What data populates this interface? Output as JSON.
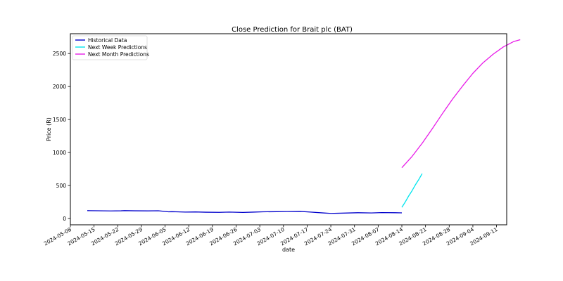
{
  "chart_data": {
    "type": "line",
    "title": "Close Prediction for Brait plc (BAT)",
    "xlabel": "date",
    "ylabel": "Price (R)",
    "xlim": [
      "2024-05-08",
      "2024-09-14"
    ],
    "ylim": [
      -95,
      2800
    ],
    "x_ticks": [
      "2024-05-08",
      "2024-05-15",
      "2024-05-22",
      "2024-05-29",
      "2024-06-05",
      "2024-06-12",
      "2024-06-19",
      "2024-06-26",
      "2024-07-03",
      "2024-07-10",
      "2024-07-17",
      "2024-07-24",
      "2024-07-31",
      "2024-08-07",
      "2024-08-14",
      "2024-08-21",
      "2024-08-28",
      "2024-09-04",
      "2024-09-11"
    ],
    "y_ticks": [
      0,
      500,
      1000,
      1500,
      2000,
      2500
    ],
    "grid": false,
    "legend_position": "top-left",
    "series": [
      {
        "name": "Historical Data",
        "color": "#0000cc",
        "points": [
          [
            "2024-05-13",
            120
          ],
          [
            "2024-05-16",
            118
          ],
          [
            "2024-05-20",
            115
          ],
          [
            "2024-05-23",
            117
          ],
          [
            "2024-05-24",
            120
          ],
          [
            "2024-05-27",
            117
          ],
          [
            "2024-05-31",
            116
          ],
          [
            "2024-06-03",
            118
          ],
          [
            "2024-06-06",
            102
          ],
          [
            "2024-06-07",
            104
          ],
          [
            "2024-06-11",
            98
          ],
          [
            "2024-06-14",
            100
          ],
          [
            "2024-06-17",
            96
          ],
          [
            "2024-06-21",
            94
          ],
          [
            "2024-06-24",
            98
          ],
          [
            "2024-06-28",
            93
          ],
          [
            "2024-07-01",
            97
          ],
          [
            "2024-07-04",
            102
          ],
          [
            "2024-07-08",
            104
          ],
          [
            "2024-07-11",
            106
          ],
          [
            "2024-07-15",
            108
          ],
          [
            "2024-07-18",
            98
          ],
          [
            "2024-07-22",
            84
          ],
          [
            "2024-07-24",
            78
          ],
          [
            "2024-07-26",
            80
          ],
          [
            "2024-07-29",
            84
          ],
          [
            "2024-08-01",
            88
          ],
          [
            "2024-08-05",
            85
          ],
          [
            "2024-08-08",
            90
          ],
          [
            "2024-08-12",
            88
          ],
          [
            "2024-08-14",
            86
          ]
        ]
      },
      {
        "name": "Next Week Predictions",
        "color": "#00e5ee",
        "points": [
          [
            "2024-08-14",
            170
          ],
          [
            "2024-08-15",
            250
          ],
          [
            "2024-08-16",
            340
          ],
          [
            "2024-08-17",
            420
          ],
          [
            "2024-08-18",
            510
          ],
          [
            "2024-08-19",
            590
          ],
          [
            "2024-08-20",
            680
          ]
        ]
      },
      {
        "name": "Next Month Predictions",
        "color": "#e81ce8",
        "points": [
          [
            "2024-08-14",
            770
          ],
          [
            "2024-08-17",
            940
          ],
          [
            "2024-08-20",
            1140
          ],
          [
            "2024-08-23",
            1360
          ],
          [
            "2024-08-26",
            1590
          ],
          [
            "2024-08-29",
            1810
          ],
          [
            "2024-09-01",
            2010
          ],
          [
            "2024-09-04",
            2200
          ],
          [
            "2024-09-07",
            2360
          ],
          [
            "2024-09-10",
            2490
          ],
          [
            "2024-09-13",
            2600
          ],
          [
            "2024-09-16",
            2680
          ],
          [
            "2024-09-18",
            2710
          ]
        ]
      }
    ]
  }
}
